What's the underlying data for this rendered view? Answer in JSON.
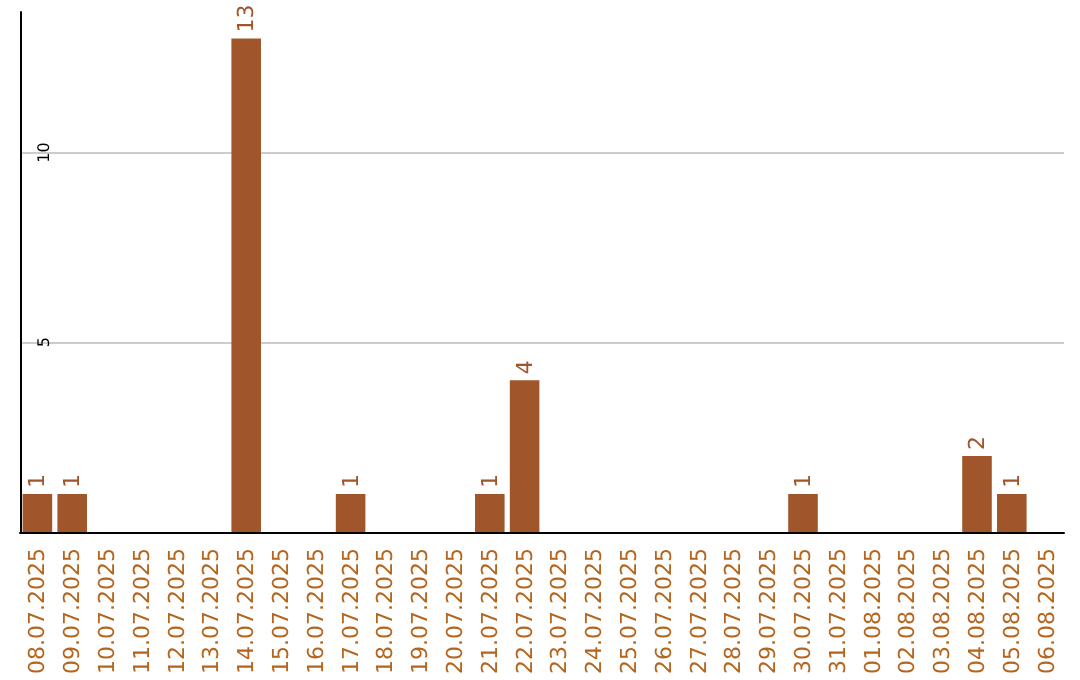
{
  "chart_data": {
    "type": "bar",
    "categories": [
      "08.07.2025",
      "09.07.2025",
      "10.07.2025",
      "11.07.2025",
      "12.07.2025",
      "13.07.2025",
      "14.07.2025",
      "15.07.2025",
      "16.07.2025",
      "17.07.2025",
      "18.07.2025",
      "19.07.2025",
      "20.07.2025",
      "21.07.2025",
      "22.07.2025",
      "23.07.2025",
      "24.07.2025",
      "25.07.2025",
      "26.07.2025",
      "27.07.2025",
      "28.07.2025",
      "29.07.2025",
      "30.07.2025",
      "31.07.2025",
      "01.08.2025",
      "02.08.2025",
      "03.08.2025",
      "04.08.2025",
      "05.08.2025",
      "06.08.2025"
    ],
    "values": [
      1,
      1,
      0,
      0,
      0,
      0,
      13,
      0,
      0,
      1,
      0,
      0,
      0,
      1,
      4,
      0,
      0,
      0,
      0,
      0,
      0,
      0,
      1,
      0,
      0,
      0,
      0,
      2,
      1,
      0
    ],
    "color": "#a0562a",
    "value_labels": [
      "1",
      "1",
      null,
      null,
      null,
      null,
      "13",
      null,
      null,
      "1",
      null,
      null,
      null,
      "1",
      "4",
      null,
      null,
      null,
      null,
      null,
      null,
      null,
      "1",
      null,
      null,
      null,
      null,
      "2",
      "1",
      null
    ],
    "ylim": [
      0,
      13.7
    ],
    "yticks": [
      5,
      10
    ],
    "grid": "y"
  }
}
